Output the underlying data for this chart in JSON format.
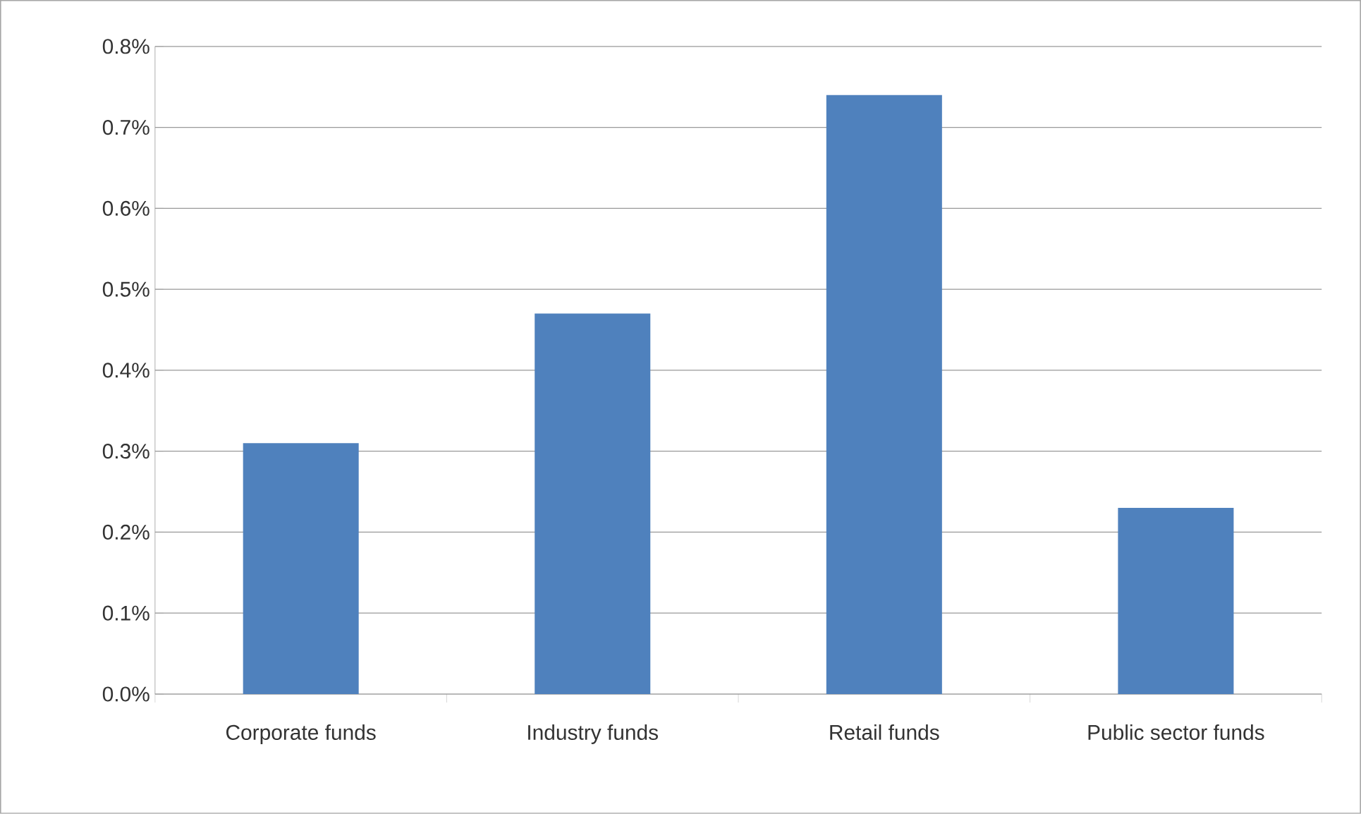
{
  "chart_data": {
    "type": "bar",
    "categories": [
      "Corporate funds",
      "Industry funds",
      "Retail funds",
      "Public sector funds"
    ],
    "values": [
      0.31,
      0.47,
      0.74,
      0.23
    ],
    "color": "#4f81bd",
    "ylim": [
      0,
      0.8
    ],
    "yticks": [
      {
        "value": 0,
        "label": "0.0%"
      },
      {
        "value": 0.1,
        "label": "0.1%"
      },
      {
        "value": 0.2,
        "label": "0.2%"
      },
      {
        "value": 0.3,
        "label": "0.3%"
      },
      {
        "value": 0.4,
        "label": "0.4%"
      },
      {
        "value": 0.5,
        "label": "0.5%"
      },
      {
        "value": 0.6,
        "label": "0.6%"
      },
      {
        "value": 0.7,
        "label": "0.7%"
      },
      {
        "value": 0.8,
        "label": "0.8%"
      }
    ],
    "grid": "y"
  }
}
